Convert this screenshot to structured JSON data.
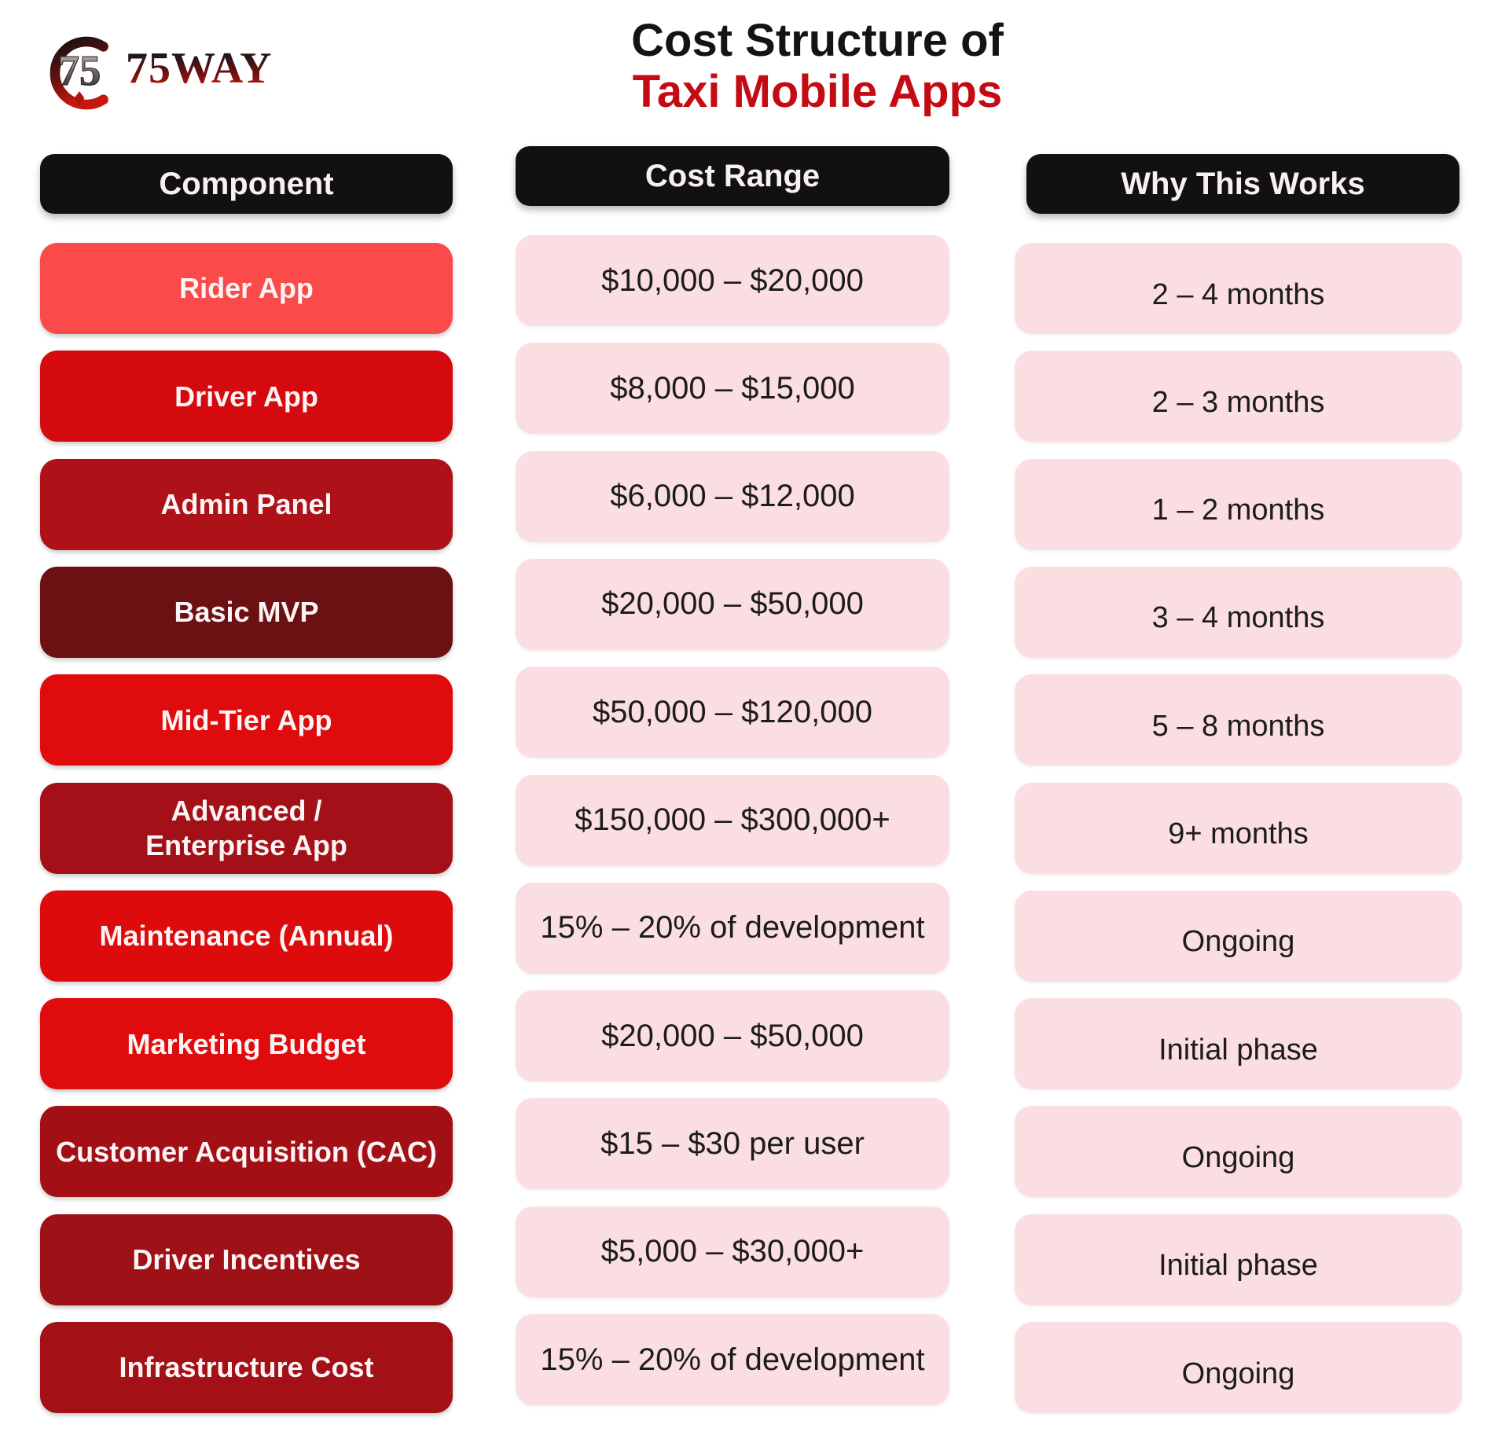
{
  "logo": {
    "text": "75WAY",
    "mark": "75"
  },
  "title": {
    "line1": "Cost Structure of",
    "line2": "Taxi Mobile Apps",
    "line2_color": "#c40a12"
  },
  "columns": [
    {
      "id": "component",
      "label": "Component"
    },
    {
      "id": "cost",
      "label": "Cost Range"
    },
    {
      "id": "why",
      "label": "Why This Works"
    }
  ],
  "rows": [
    {
      "component": "Rider App",
      "color": "#fb4a4a",
      "cost": "$10,000 – $20,000",
      "why": "2 – 4 months"
    },
    {
      "component": "Driver App",
      "color": "#d50a0f",
      "cost": "$8,000 – $15,000",
      "why": "2 – 3 months"
    },
    {
      "component": "Admin Panel",
      "color": "#ae1218",
      "cost": "$6,000 – $12,000",
      "why": "1 – 2 months"
    },
    {
      "component": "Basic MVP",
      "color": "#6b1013",
      "cost": "$20,000 – $50,000",
      "why": "3 – 4 months"
    },
    {
      "component": "Mid-Tier App",
      "color": "#e00b0c",
      "cost": "$50,000 – $120,000",
      "why": "5 – 8 months"
    },
    {
      "component": "Advanced /\nEnterprise App",
      "color": "#a31017",
      "cost": "$150,000 – $300,000+",
      "why": "9+ months"
    },
    {
      "component": "Maintenance (Annual)",
      "color": "#de0b0d",
      "cost": "15% – 20% of development",
      "why": "Ongoing"
    },
    {
      "component": "Marketing Budget",
      "color": "#e00b0c",
      "cost": "$20,000 – $50,000",
      "why": "Initial phase"
    },
    {
      "component": "Customer Acquisition (CAC)",
      "color": "#a21016",
      "cost": "$15 – $30 per user",
      "why": "Ongoing"
    },
    {
      "component": "Driver Incentives",
      "color": "#9e1116",
      "cost": "$5,000 – $30,000+",
      "why": "Initial phase"
    },
    {
      "component": "Infrastructure Cost",
      "color": "#a31016",
      "cost": "15% – 20% of development",
      "why": "Ongoing"
    }
  ],
  "colors": {
    "header_bg": "#121010",
    "header_text": "#f7f2f2",
    "pink_bg": "#fbdee1",
    "cell_text": "#1c1c1c",
    "component_text": "#fdf5f5"
  },
  "chart_data": {
    "type": "table",
    "title": "Cost Structure of Taxi Mobile Apps",
    "columns": [
      "Component",
      "Cost Range",
      "Why This Works"
    ],
    "rows": [
      [
        "Rider App",
        "$10,000 – $20,000",
        "2 – 4 months"
      ],
      [
        "Driver App",
        "$8,000 – $15,000",
        "2 – 3 months"
      ],
      [
        "Admin Panel",
        "$6,000 – $12,000",
        "1 – 2 months"
      ],
      [
        "Basic MVP",
        "$20,000 – $50,000",
        "3 – 4 months"
      ],
      [
        "Mid-Tier App",
        "$50,000 – $120,000",
        "5 – 8 months"
      ],
      [
        "Advanced / Enterprise App",
        "$150,000 – $300,000+",
        "9+ months"
      ],
      [
        "Maintenance (Annual)",
        "15% – 20% of development",
        "Ongoing"
      ],
      [
        "Marketing Budget",
        "$20,000 – $50,000",
        "Initial phase"
      ],
      [
        "Customer Acquisition (CAC)",
        "$15 – $30 per user",
        "Ongoing"
      ],
      [
        "Driver Incentives",
        "$5,000 – $30,000+",
        "Initial phase"
      ],
      [
        "Infrastructure Cost",
        "15% – 20% of development",
        "Ongoing"
      ]
    ]
  }
}
